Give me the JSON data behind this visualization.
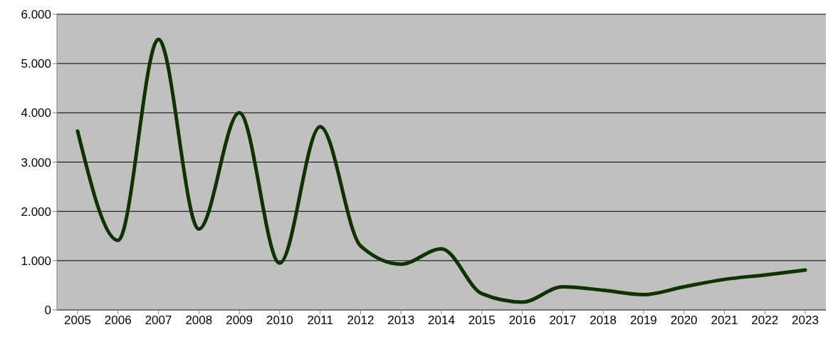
{
  "chart_data": {
    "type": "line",
    "categories": [
      "2005",
      "2006",
      "2007",
      "2008",
      "2009",
      "2010",
      "2011",
      "2012",
      "2013",
      "2014",
      "2015",
      "2016",
      "2017",
      "2018",
      "2019",
      "2020",
      "2021",
      "2022",
      "2023"
    ],
    "series": [
      {
        "color": "#0f3300",
        "values": [
          3630,
          1410,
          5490,
          1640,
          4000,
          950,
          3720,
          1300,
          930,
          1240,
          330,
          160,
          470,
          400,
          310,
          470,
          620,
          710,
          810
        ]
      }
    ],
    "ylim": [
      0,
      6000
    ],
    "yticks": [
      0,
      {
        "value": 1000,
        "label": "1.000"
      },
      {
        "value": 2000,
        "label": "2.000"
      },
      {
        "value": 3000,
        "label": "3.000"
      },
      {
        "value": 4000,
        "label": "4.000"
      },
      {
        "value": 5000,
        "label": "5.000"
      },
      {
        "value": 6000,
        "label": "6.000"
      }
    ],
    "grid": "y",
    "marker": "none",
    "line_style": "solid"
  }
}
